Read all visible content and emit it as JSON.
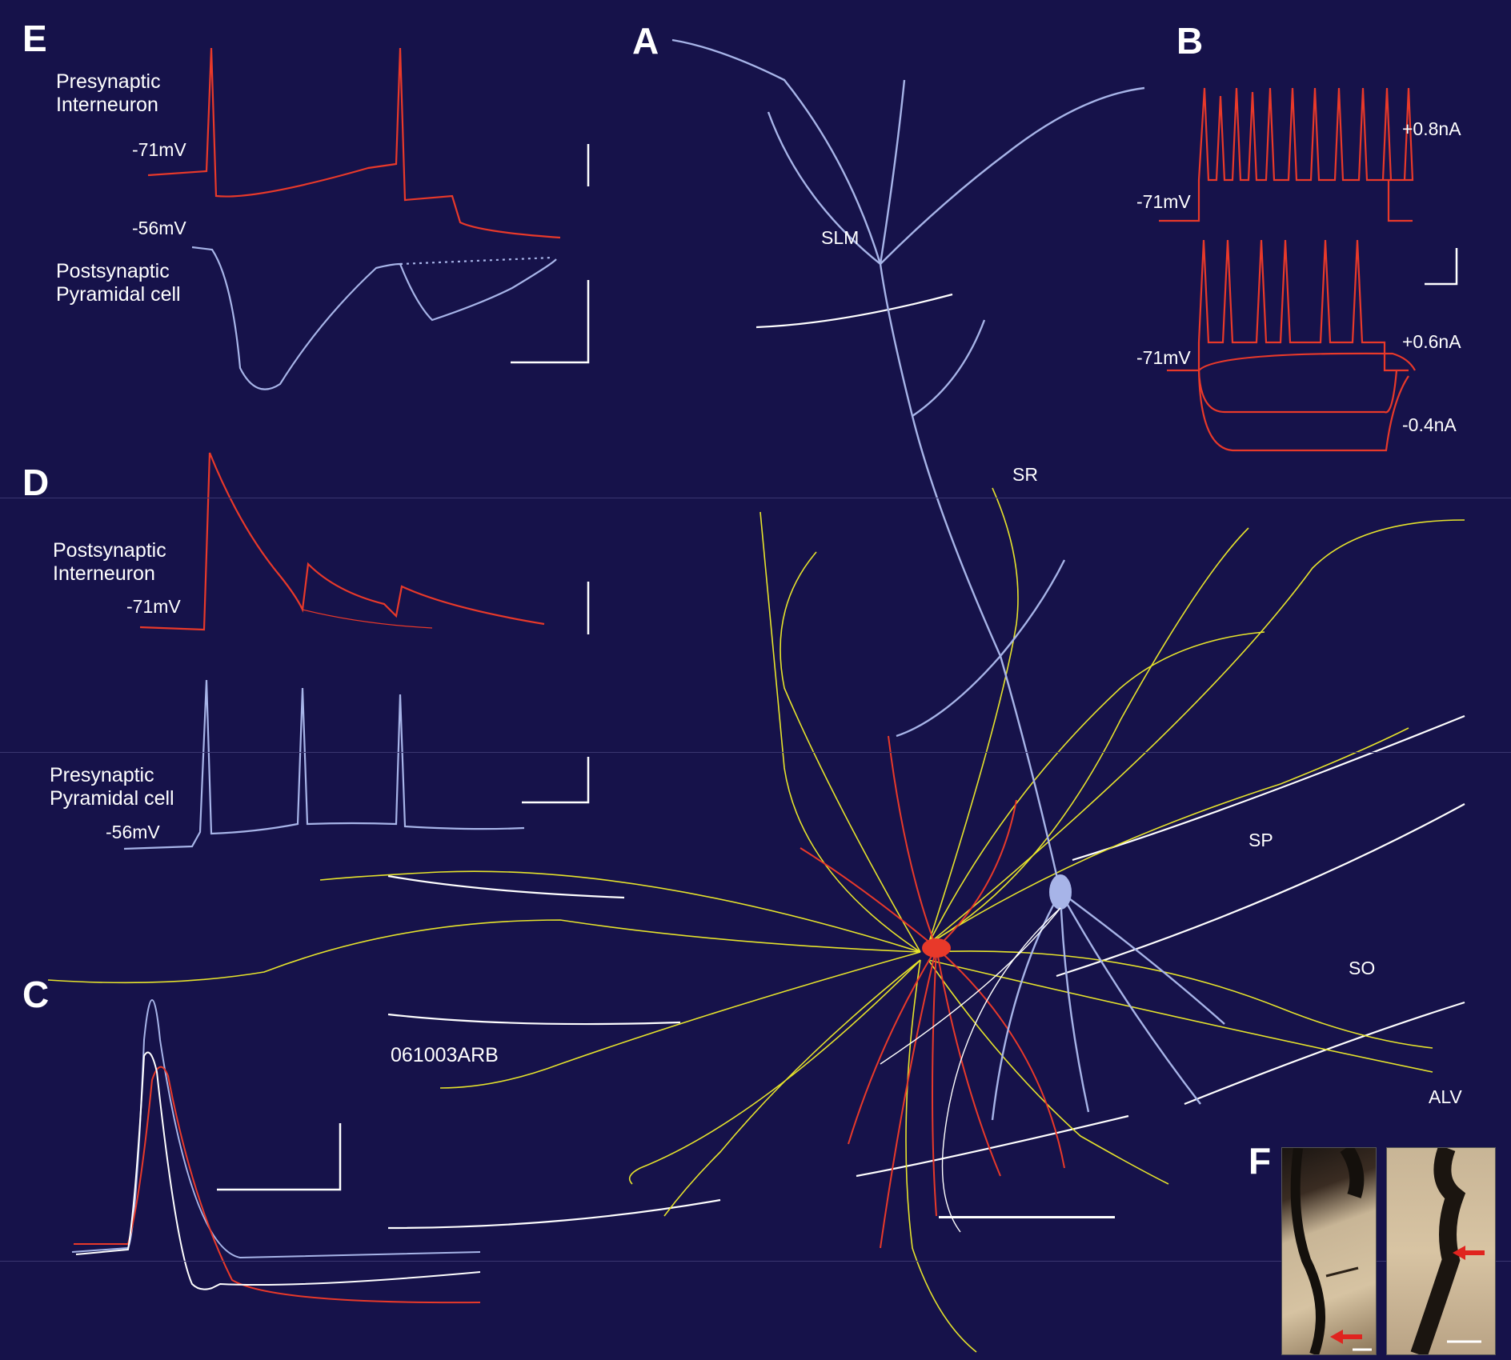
{
  "panels": {
    "A": {
      "letter": "A",
      "layers": [
        "SLM",
        "SR",
        "SP",
        "SO",
        "ALV"
      ],
      "cell_id": "061003ARB"
    },
    "B": {
      "letter": "B",
      "resting": [
        "-71mV",
        "-71mV"
      ],
      "currents": [
        "+0.8nA",
        "+0.6nA",
        "-0.4nA"
      ]
    },
    "C": {
      "letter": "C"
    },
    "D": {
      "letter": "D",
      "post_label": [
        "Postsynaptic",
        "Interneuron"
      ],
      "post_resting": "-71mV",
      "pre_label": [
        "Presynaptic",
        "Pyramidal cell"
      ],
      "pre_resting": "-56mV"
    },
    "E": {
      "letter": "E",
      "pre_label": [
        "Presynaptic",
        "Interneuron"
      ],
      "pre_resting": "-71mV",
      "post_resting": "-56mV",
      "post_label": [
        "Postsynaptic",
        "Pyramidal cell"
      ]
    },
    "F": {
      "letter": "F"
    }
  },
  "colors": {
    "background": "#16124a",
    "interneuron": "#e8392a",
    "pyramidal": "#a7b4e8",
    "axon": "#e6e32c",
    "scale": "#ffffff",
    "arrow": "#e0241f"
  }
}
